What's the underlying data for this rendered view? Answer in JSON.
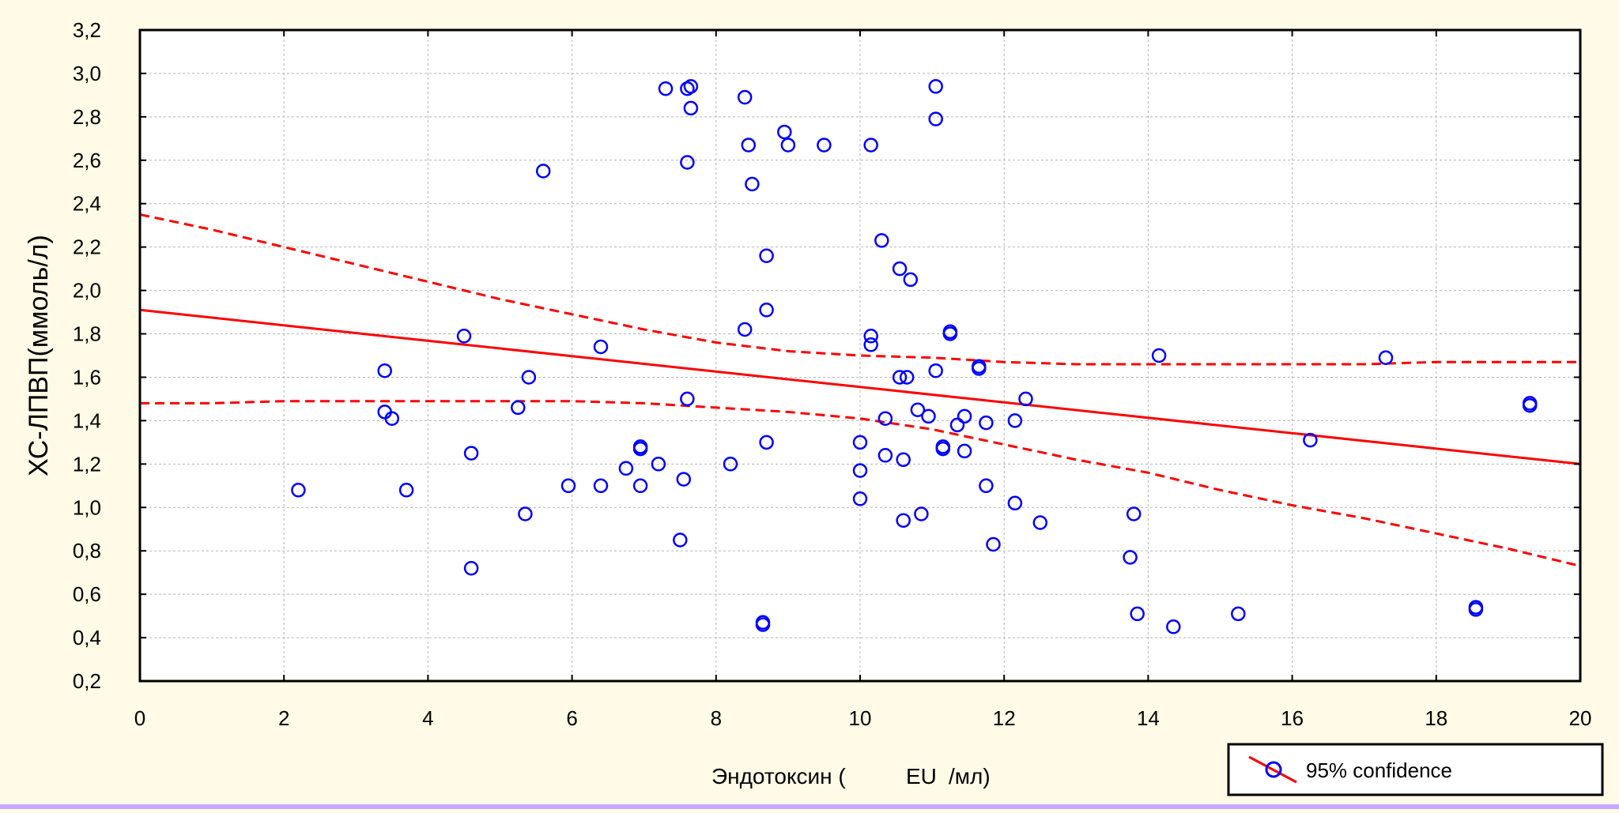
{
  "chart_data": {
    "type": "scatter",
    "title": "",
    "xlabel": "Эндотоксин (EU/мл)",
    "xlabel_parts": [
      "Эндотоксин (",
      "EU",
      "/мл)"
    ],
    "ylabel": "ХС-ЛПВП(ммоль/л)",
    "xlim": [
      0,
      20
    ],
    "ylim": [
      0.2,
      3.2
    ],
    "xticks": [
      0,
      2,
      4,
      6,
      8,
      10,
      12,
      14,
      16,
      18,
      20
    ],
    "xtick_labels": [
      "0",
      "2",
      "4",
      "6",
      "8",
      "10",
      "12",
      "14",
      "16",
      "18",
      "20"
    ],
    "yticks": [
      0.2,
      0.4,
      0.6,
      0.8,
      1.0,
      1.2,
      1.4,
      1.6,
      1.8,
      2.0,
      2.2,
      2.4,
      2.6,
      2.8,
      3.0,
      3.2
    ],
    "ytick_labels": [
      "0,2",
      "0,4",
      "0,6",
      "0,8",
      "1,0",
      "1,2",
      "1,4",
      "1,6",
      "1,8",
      "2,0",
      "2,2",
      "2,4",
      "2,6",
      "2,8",
      "3,0",
      "3,2"
    ],
    "grid": true,
    "legend": {
      "placement": "bottom-right",
      "label": "95% confidence"
    },
    "points": [
      {
        "x": 2.2,
        "y": 1.08
      },
      {
        "x": 3.4,
        "y": 1.63
      },
      {
        "x": 3.4,
        "y": 1.44
      },
      {
        "x": 3.5,
        "y": 1.41
      },
      {
        "x": 3.7,
        "y": 1.08
      },
      {
        "x": 4.5,
        "y": 1.79
      },
      {
        "x": 4.6,
        "y": 1.25
      },
      {
        "x": 4.6,
        "y": 0.72
      },
      {
        "x": 5.25,
        "y": 1.46
      },
      {
        "x": 5.35,
        "y": 0.97
      },
      {
        "x": 5.4,
        "y": 1.6
      },
      {
        "x": 5.6,
        "y": 2.55
      },
      {
        "x": 5.95,
        "y": 1.1
      },
      {
        "x": 6.4,
        "y": 1.74
      },
      {
        "x": 6.4,
        "y": 1.1
      },
      {
        "x": 6.75,
        "y": 1.18
      },
      {
        "x": 6.95,
        "y": 1.28
      },
      {
        "x": 6.95,
        "y": 1.27
      },
      {
        "x": 6.95,
        "y": 1.1
      },
      {
        "x": 7.2,
        "y": 1.2
      },
      {
        "x": 7.3,
        "y": 2.93
      },
      {
        "x": 7.5,
        "y": 0.85
      },
      {
        "x": 7.55,
        "y": 1.13
      },
      {
        "x": 7.6,
        "y": 2.93
      },
      {
        "x": 7.65,
        "y": 2.94
      },
      {
        "x": 7.6,
        "y": 2.59
      },
      {
        "x": 7.65,
        "y": 2.84
      },
      {
        "x": 7.6,
        "y": 1.5
      },
      {
        "x": 8.2,
        "y": 1.2
      },
      {
        "x": 8.4,
        "y": 2.89
      },
      {
        "x": 8.45,
        "y": 2.67
      },
      {
        "x": 8.4,
        "y": 1.82
      },
      {
        "x": 8.5,
        "y": 2.49
      },
      {
        "x": 8.7,
        "y": 2.16
      },
      {
        "x": 8.7,
        "y": 1.91
      },
      {
        "x": 8.7,
        "y": 1.3
      },
      {
        "x": 8.65,
        "y": 0.47
      },
      {
        "x": 8.65,
        "y": 0.46
      },
      {
        "x": 8.95,
        "y": 2.73
      },
      {
        "x": 9.0,
        "y": 2.67
      },
      {
        "x": 9.5,
        "y": 2.67
      },
      {
        "x": 10.0,
        "y": 1.3
      },
      {
        "x": 10.0,
        "y": 1.17
      },
      {
        "x": 10.0,
        "y": 1.04
      },
      {
        "x": 10.15,
        "y": 2.67
      },
      {
        "x": 10.15,
        "y": 1.79
      },
      {
        "x": 10.15,
        "y": 1.75
      },
      {
        "x": 10.3,
        "y": 2.23
      },
      {
        "x": 10.35,
        "y": 1.41
      },
      {
        "x": 10.35,
        "y": 1.24
      },
      {
        "x": 10.55,
        "y": 2.1
      },
      {
        "x": 10.55,
        "y": 1.6
      },
      {
        "x": 10.6,
        "y": 1.22
      },
      {
        "x": 10.6,
        "y": 0.94
      },
      {
        "x": 10.65,
        "y": 1.6
      },
      {
        "x": 10.7,
        "y": 2.05
      },
      {
        "x": 10.8,
        "y": 1.45
      },
      {
        "x": 10.85,
        "y": 0.97
      },
      {
        "x": 10.95,
        "y": 1.42
      },
      {
        "x": 11.05,
        "y": 2.94
      },
      {
        "x": 11.05,
        "y": 2.79
      },
      {
        "x": 11.05,
        "y": 1.63
      },
      {
        "x": 11.15,
        "y": 1.28
      },
      {
        "x": 11.15,
        "y": 1.27
      },
      {
        "x": 11.25,
        "y": 1.81
      },
      {
        "x": 11.25,
        "y": 1.8
      },
      {
        "x": 11.35,
        "y": 1.38
      },
      {
        "x": 11.45,
        "y": 1.42
      },
      {
        "x": 11.45,
        "y": 1.26
      },
      {
        "x": 11.65,
        "y": 1.65
      },
      {
        "x": 11.65,
        "y": 1.64
      },
      {
        "x": 11.75,
        "y": 1.39
      },
      {
        "x": 11.75,
        "y": 1.1
      },
      {
        "x": 11.85,
        "y": 0.83
      },
      {
        "x": 12.15,
        "y": 1.4
      },
      {
        "x": 12.15,
        "y": 1.02
      },
      {
        "x": 12.3,
        "y": 1.5
      },
      {
        "x": 12.5,
        "y": 0.93
      },
      {
        "x": 13.75,
        "y": 0.77
      },
      {
        "x": 13.8,
        "y": 0.97
      },
      {
        "x": 13.85,
        "y": 0.51
      },
      {
        "x": 14.15,
        "y": 1.7
      },
      {
        "x": 14.35,
        "y": 0.45
      },
      {
        "x": 15.25,
        "y": 0.51
      },
      {
        "x": 16.25,
        "y": 1.31
      },
      {
        "x": 17.3,
        "y": 1.69
      },
      {
        "x": 18.55,
        "y": 0.54
      },
      {
        "x": 18.55,
        "y": 0.53
      },
      {
        "x": 19.3,
        "y": 1.48
      },
      {
        "x": 19.3,
        "y": 1.47
      }
    ],
    "regression_line": {
      "x": [
        0,
        20
      ],
      "y": [
        1.91,
        1.2
      ]
    },
    "ci_upper": {
      "x": [
        0,
        1,
        2,
        3,
        4,
        5,
        6,
        7,
        8,
        9,
        10,
        11,
        12,
        13,
        14,
        15,
        16,
        17,
        18,
        19,
        20
      ],
      "y": [
        2.35,
        2.28,
        2.2,
        2.12,
        2.04,
        1.96,
        1.89,
        1.82,
        1.76,
        1.72,
        1.7,
        1.69,
        1.67,
        1.66,
        1.66,
        1.66,
        1.66,
        1.66,
        1.67,
        1.67,
        1.67
      ]
    },
    "ci_lower": {
      "x": [
        0,
        1,
        2,
        3,
        4,
        5,
        6,
        7,
        8,
        9,
        10,
        11,
        12,
        13,
        14,
        15,
        16,
        17,
        18,
        19,
        20
      ],
      "y": [
        1.48,
        1.48,
        1.49,
        1.49,
        1.49,
        1.49,
        1.49,
        1.48,
        1.46,
        1.44,
        1.41,
        1.36,
        1.29,
        1.22,
        1.16,
        1.08,
        1.01,
        0.95,
        0.88,
        0.81,
        0.73
      ]
    },
    "colors": {
      "points": "#0000ff",
      "line": "#ff0000",
      "axis": "#000000",
      "grid": "#b4b4b4",
      "background": "#fffbe6",
      "plot_background": "#ffffff"
    }
  }
}
